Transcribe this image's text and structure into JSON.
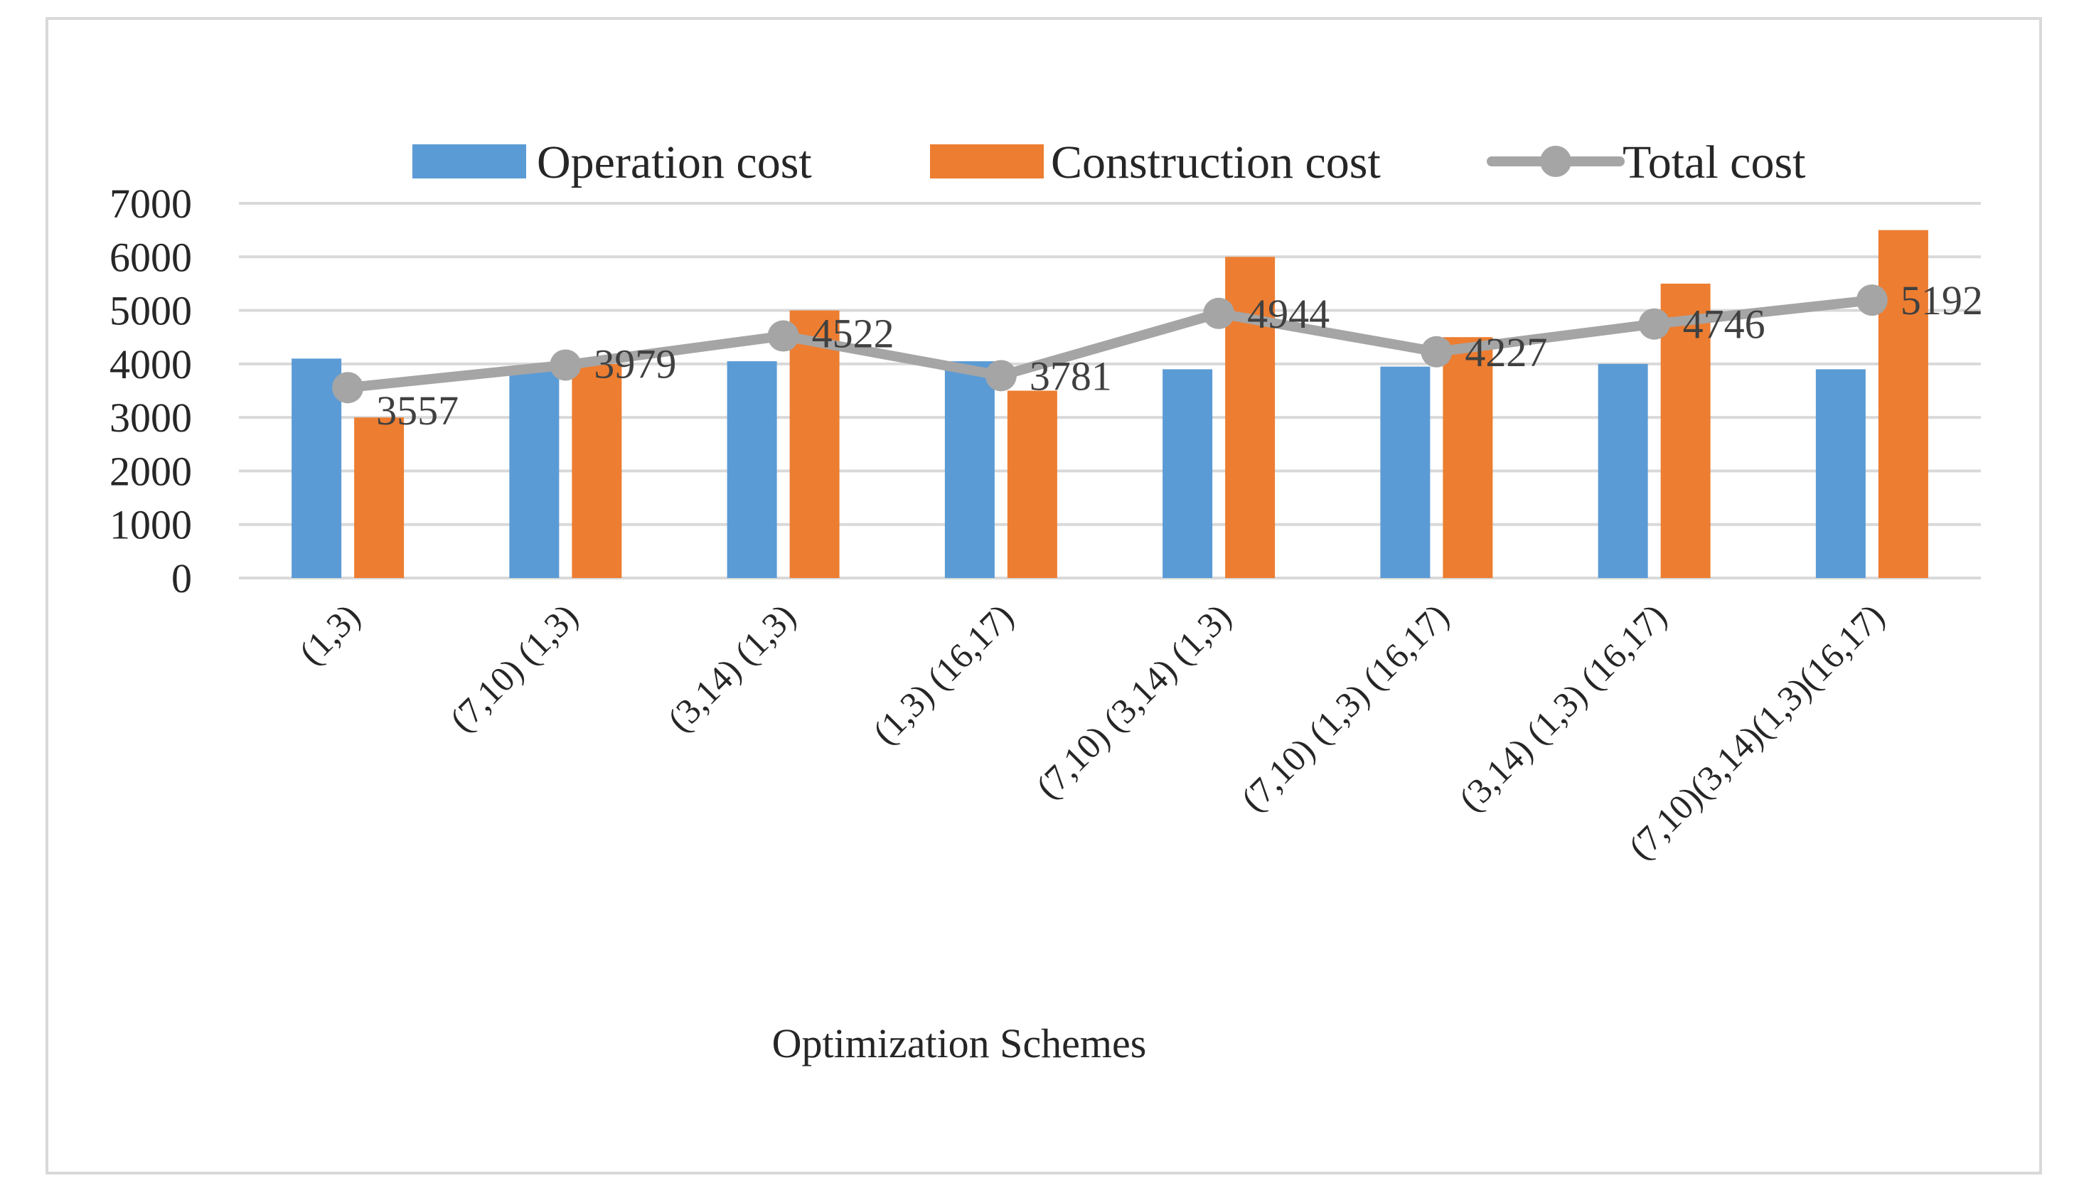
{
  "chart_data": {
    "type": "bar",
    "title": "",
    "xlabel": "Optimization Schemes",
    "ylabel": "",
    "ylim": [
      0,
      7000
    ],
    "yticks": [
      0,
      1000,
      2000,
      3000,
      4000,
      5000,
      6000,
      7000
    ],
    "grid": true,
    "legend_position": "top",
    "categories": [
      "(1,3)",
      "(7,10) (1,3)",
      "(3,14) (1,3)",
      "(1,3) (16,17)",
      "(7,10) (3,14) (1,3)",
      "(7,10) (1,3) (16,17)",
      "(3,14) (1,3) (16,17)",
      "(7,10)(3,14)(1,3)(16,17)"
    ],
    "series": [
      {
        "name": "Operation cost",
        "type": "bar",
        "color": "#5b9bd5",
        "values": [
          4100,
          3950,
          4050,
          4050,
          3900,
          3950,
          4000,
          3900
        ]
      },
      {
        "name": "Construction cost",
        "type": "bar",
        "color": "#ed7d31",
        "values": [
          3000,
          4000,
          5000,
          3500,
          6000,
          4500,
          5500,
          6500
        ]
      },
      {
        "name": "Total cost",
        "type": "line",
        "color": "#a5a5a5",
        "values": [
          3557,
          3979,
          4522,
          3781,
          4944,
          4227,
          4746,
          5192
        ],
        "labels": [
          "3557",
          "3979",
          "4522",
          "3781",
          "4944",
          "4227",
          "4746",
          "5192"
        ]
      }
    ]
  }
}
